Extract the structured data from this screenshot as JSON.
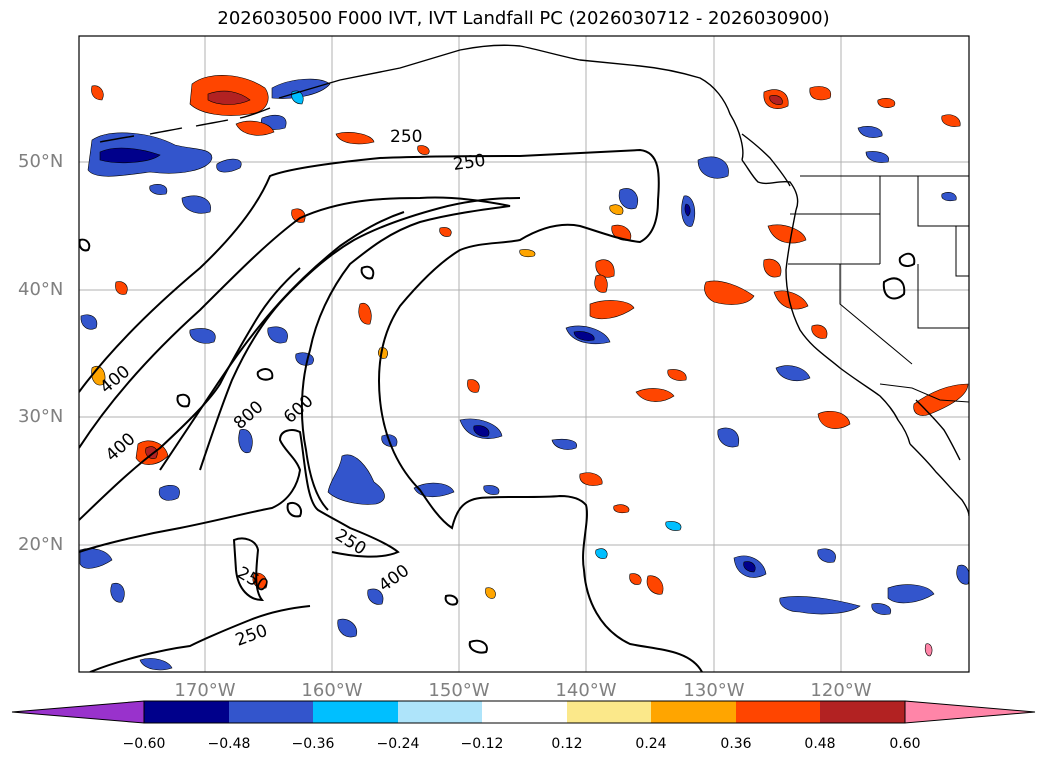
{
  "title": "2026030500 F000 IVT, IVT Landfall PC (2026030712 - 2026030900)",
  "lat_labels": [
    "50°N",
    "40°N",
    "30°N",
    "20°N"
  ],
  "lon_labels": [
    "170°W",
    "160°W",
    "150°W",
    "140°W",
    "130°W",
    "120°W"
  ],
  "contour_labels": [
    "250",
    "250",
    "400",
    "400",
    "800",
    "600",
    "250",
    "400",
    "250",
    "250"
  ],
  "colorbar": {
    "ticks": [
      "−0.60",
      "−0.48",
      "−0.36",
      "−0.24",
      "−0.12",
      "0.12",
      "0.24",
      "0.36",
      "0.48",
      "0.60"
    ],
    "colors": [
      "#9932cc",
      "#00008b",
      "#3355cc",
      "#00bfff",
      "#aee4fa",
      "#ffffff",
      "#fbe88a",
      "#ffa500",
      "#ff4500",
      "#b22222",
      "#ff85a8"
    ]
  },
  "map_colors": {
    "neg_dark": "#00008b",
    "neg_mid": "#3355cc",
    "neg_light": "#00bfff",
    "neg_pale": "#aee4fa",
    "pos_pale": "#fbe88a",
    "pos_orange": "#ffa500",
    "pos_red": "#ff4500",
    "pos_dark": "#b22222"
  }
}
